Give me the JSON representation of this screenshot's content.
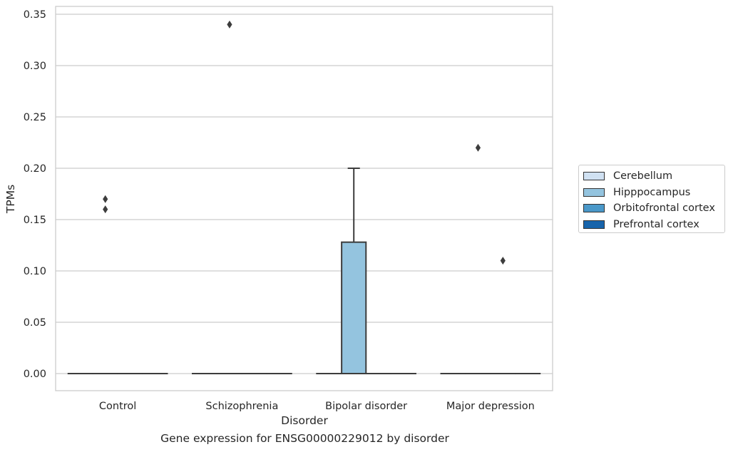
{
  "chart_data": {
    "type": "box",
    "title": "",
    "caption": "Gene expression for ENSG00000229012 by disorder",
    "xlabel": "Disorder",
    "ylabel": "TPMs",
    "ylim": [
      -0.017,
      0.358
    ],
    "yticks": [
      0.0,
      0.05,
      0.1,
      0.15,
      0.2,
      0.25,
      0.3,
      0.35
    ],
    "ytick_labels": [
      "0.00",
      "0.05",
      "0.10",
      "0.15",
      "0.20",
      "0.25",
      "0.30",
      "0.35"
    ],
    "grid": true,
    "legend_position": "right",
    "categories": [
      "Control",
      "Schizophrenia",
      "Bipolar disorder",
      "Major depression"
    ],
    "series": [
      {
        "name": "Cerebellum",
        "color": "#d0e1f2",
        "boxes": [
          {
            "q1": 0,
            "median": 0,
            "q3": 0,
            "whisker_low": 0,
            "whisker_high": 0,
            "outliers": []
          },
          {
            "q1": 0,
            "median": 0,
            "q3": 0,
            "whisker_low": 0,
            "whisker_high": 0,
            "outliers": []
          },
          {
            "q1": 0,
            "median": 0,
            "q3": 0,
            "whisker_low": 0,
            "whisker_high": 0,
            "outliers": []
          },
          {
            "q1": 0,
            "median": 0,
            "q3": 0,
            "whisker_low": 0,
            "whisker_high": 0,
            "outliers": []
          }
        ]
      },
      {
        "name": "Hipppocampus",
        "color": "#94c4df",
        "boxes": [
          {
            "q1": 0,
            "median": 0,
            "q3": 0,
            "whisker_low": 0,
            "whisker_high": 0,
            "outliers": [
              0.17,
              0.16
            ]
          },
          {
            "q1": 0,
            "median": 0,
            "q3": 0,
            "whisker_low": 0,
            "whisker_high": 0,
            "outliers": [
              0.34
            ]
          },
          {
            "q1": 0,
            "median": 0,
            "q3": 0.128,
            "whisker_low": 0,
            "whisker_high": 0.2,
            "outliers": []
          },
          {
            "q1": 0,
            "median": 0,
            "q3": 0,
            "whisker_low": 0,
            "whisker_high": 0,
            "outliers": [
              0.22
            ]
          }
        ]
      },
      {
        "name": "Orbitofrontal cortex",
        "color": "#4a98c9",
        "boxes": [
          {
            "q1": 0,
            "median": 0,
            "q3": 0,
            "whisker_low": 0,
            "whisker_high": 0,
            "outliers": []
          },
          {
            "q1": 0,
            "median": 0,
            "q3": 0,
            "whisker_low": 0,
            "whisker_high": 0,
            "outliers": []
          },
          {
            "q1": 0,
            "median": 0,
            "q3": 0,
            "whisker_low": 0,
            "whisker_high": 0,
            "outliers": []
          },
          {
            "q1": 0,
            "median": 0,
            "q3": 0,
            "whisker_low": 0,
            "whisker_high": 0,
            "outliers": [
              0.11
            ]
          }
        ]
      },
      {
        "name": "Prefrontal cortex",
        "color": "#1764ab",
        "boxes": [
          {
            "q1": 0,
            "median": 0,
            "q3": 0,
            "whisker_low": 0,
            "whisker_high": 0,
            "outliers": []
          },
          {
            "q1": 0,
            "median": 0,
            "q3": 0,
            "whisker_low": 0,
            "whisker_high": 0,
            "outliers": []
          },
          {
            "q1": 0,
            "median": 0,
            "q3": 0,
            "whisker_low": 0,
            "whisker_high": 0,
            "outliers": []
          },
          {
            "q1": 0,
            "median": 0,
            "q3": 0,
            "whisker_low": 0,
            "whisker_high": 0,
            "outliers": []
          }
        ]
      }
    ]
  }
}
